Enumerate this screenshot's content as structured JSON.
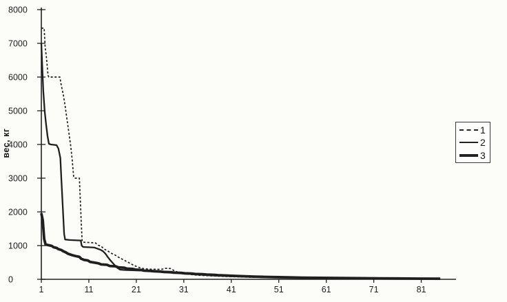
{
  "figure": {
    "background": "#fcfcf9",
    "ink": "#1f1f1f"
  },
  "chart_data": {
    "type": "line",
    "title": "",
    "xlabel": "",
    "ylabel": "вес, кг",
    "xlim": [
      1,
      86
    ],
    "ylim": [
      0,
      8000
    ],
    "x_ticks": [
      1,
      11,
      21,
      31,
      41,
      51,
      61,
      71,
      81
    ],
    "y_ticks": [
      0,
      1000,
      2000,
      3000,
      4000,
      5000,
      6000,
      7000,
      8000
    ],
    "grid": false,
    "legend_position": "right-outside",
    "series": [
      {
        "name": "1",
        "style": "dashed",
        "width": 1.7,
        "points": [
          [
            1,
            7450
          ],
          [
            1.6,
            7450
          ],
          [
            1.8,
            6900
          ],
          [
            2.1,
            6550
          ],
          [
            2.4,
            6050
          ],
          [
            2.6,
            6000
          ],
          [
            4.9,
            6000
          ],
          [
            5.2,
            5750
          ],
          [
            5.6,
            5500
          ],
          [
            6.0,
            5150
          ],
          [
            6.4,
            4750
          ],
          [
            6.8,
            4350
          ],
          [
            7.2,
            3950
          ],
          [
            7.5,
            3550
          ],
          [
            7.8,
            3050
          ],
          [
            8.0,
            3000
          ],
          [
            9.0,
            3000
          ],
          [
            9.2,
            2400
          ],
          [
            9.4,
            1700
          ],
          [
            9.6,
            1120
          ],
          [
            10.0,
            1100
          ],
          [
            12.4,
            1080
          ],
          [
            13.0,
            1010
          ],
          [
            13.6,
            980
          ],
          [
            14.2,
            900
          ],
          [
            15.0,
            840
          ],
          [
            15.6,
            780
          ],
          [
            16.4,
            730
          ],
          [
            17.2,
            660
          ],
          [
            18.0,
            600
          ],
          [
            18.8,
            540
          ],
          [
            19.6,
            480
          ],
          [
            20.4,
            420
          ],
          [
            21.2,
            370
          ],
          [
            22.0,
            330
          ],
          [
            22.8,
            310
          ],
          [
            24.0,
            300
          ],
          [
            25.5,
            295
          ],
          [
            26.5,
            300
          ],
          [
            27.2,
            325
          ],
          [
            28.2,
            320
          ],
          [
            28.8,
            270
          ],
          [
            29.6,
            220
          ],
          [
            30.4,
            180
          ],
          [
            31.0,
            160
          ],
          [
            32.0,
            150
          ],
          [
            33.0,
            135
          ],
          [
            34.0,
            120
          ],
          [
            35.5,
            110
          ],
          [
            37.0,
            100
          ],
          [
            39.0,
            88
          ],
          [
            41.0,
            78
          ],
          [
            43.0,
            70
          ],
          [
            45.0,
            62
          ],
          [
            48.0,
            56
          ],
          [
            52.0,
            50
          ],
          [
            56.0,
            45
          ],
          [
            60.0,
            40
          ],
          [
            65.0,
            35
          ],
          [
            70.0,
            31
          ],
          [
            75.0,
            28
          ],
          [
            80.0,
            25
          ],
          [
            85.0,
            22
          ]
        ]
      },
      {
        "name": "2",
        "style": "solid",
        "width": 2.3,
        "points": [
          [
            1,
            7000
          ],
          [
            1.4,
            5600
          ],
          [
            1.7,
            5000
          ],
          [
            2.0,
            4600
          ],
          [
            2.3,
            4250
          ],
          [
            2.6,
            4020
          ],
          [
            3.0,
            4000
          ],
          [
            4.2,
            3980
          ],
          [
            4.6,
            3880
          ],
          [
            5.0,
            3600
          ],
          [
            5.2,
            3000
          ],
          [
            5.5,
            2200
          ],
          [
            5.8,
            1350
          ],
          [
            6.0,
            1180
          ],
          [
            7.0,
            1165
          ],
          [
            9.3,
            1150
          ],
          [
            9.5,
            1000
          ],
          [
            9.8,
            960
          ],
          [
            11.0,
            950
          ],
          [
            12.2,
            940
          ],
          [
            12.8,
            910
          ],
          [
            13.4,
            880
          ],
          [
            14.0,
            830
          ],
          [
            14.5,
            760
          ],
          [
            15.0,
            660
          ],
          [
            15.5,
            570
          ],
          [
            16.0,
            490
          ],
          [
            16.5,
            410
          ],
          [
            17.0,
            340
          ],
          [
            17.6,
            285
          ],
          [
            18.5,
            275
          ],
          [
            20.0,
            268
          ],
          [
            21.5,
            262
          ],
          [
            23.0,
            258
          ],
          [
            24.0,
            250
          ],
          [
            25.0,
            235
          ],
          [
            26.5,
            220
          ],
          [
            28.0,
            205
          ],
          [
            29.5,
            190
          ],
          [
            31.0,
            170
          ],
          [
            32.5,
            155
          ],
          [
            34.0,
            140
          ],
          [
            35.5,
            125
          ],
          [
            37.0,
            112
          ],
          [
            39.0,
            100
          ],
          [
            41.0,
            90
          ],
          [
            43.0,
            80
          ],
          [
            45.0,
            72
          ],
          [
            48.0,
            63
          ],
          [
            52.0,
            55
          ],
          [
            56.0,
            48
          ],
          [
            60.0,
            43
          ],
          [
            65.0,
            37
          ],
          [
            70.0,
            32
          ],
          [
            75.0,
            28
          ],
          [
            80.0,
            24
          ],
          [
            85.0,
            21
          ]
        ]
      },
      {
        "name": "3",
        "style": "solid",
        "width": 3.8,
        "points": [
          [
            1,
            1960
          ],
          [
            1.3,
            1750
          ],
          [
            1.6,
            1200
          ],
          [
            1.9,
            1030
          ],
          [
            2.6,
            1010
          ],
          [
            3.2,
            990
          ],
          [
            3.6,
            950
          ],
          [
            4.2,
            930
          ],
          [
            4.6,
            895
          ],
          [
            5.2,
            870
          ],
          [
            5.6,
            835
          ],
          [
            6.2,
            795
          ],
          [
            6.6,
            760
          ],
          [
            7.4,
            720
          ],
          [
            8.2,
            690
          ],
          [
            9.0,
            665
          ],
          [
            9.4,
            610
          ],
          [
            10.0,
            575
          ],
          [
            10.8,
            560
          ],
          [
            11.3,
            515
          ],
          [
            12.2,
            495
          ],
          [
            13.0,
            475
          ],
          [
            13.6,
            440
          ],
          [
            14.8,
            430
          ],
          [
            15.4,
            395
          ],
          [
            16.6,
            385
          ],
          [
            17.2,
            355
          ],
          [
            18.4,
            345
          ],
          [
            19.0,
            318
          ],
          [
            20.2,
            308
          ],
          [
            20.8,
            288
          ],
          [
            22.0,
            278
          ],
          [
            22.6,
            258
          ],
          [
            24.0,
            250
          ],
          [
            24.8,
            238
          ],
          [
            26.0,
            230
          ],
          [
            26.8,
            218
          ],
          [
            28.2,
            210
          ],
          [
            29.0,
            198
          ],
          [
            30.4,
            190
          ],
          [
            31.2,
            178
          ],
          [
            32.6,
            170
          ],
          [
            33.4,
            158
          ],
          [
            35.0,
            150
          ],
          [
            35.8,
            140
          ],
          [
            37.4,
            132
          ],
          [
            38.2,
            122
          ],
          [
            40.0,
            112
          ],
          [
            42.0,
            100
          ],
          [
            44.0,
            90
          ],
          [
            46.0,
            80
          ],
          [
            48.0,
            72
          ],
          [
            50.0,
            65
          ],
          [
            53.0,
            57
          ],
          [
            56.0,
            50
          ],
          [
            60.0,
            43
          ],
          [
            64.0,
            37
          ],
          [
            68.0,
            32
          ],
          [
            72.0,
            28
          ],
          [
            76.0,
            24
          ],
          [
            80.0,
            21
          ],
          [
            85.0,
            18
          ]
        ]
      }
    ]
  }
}
